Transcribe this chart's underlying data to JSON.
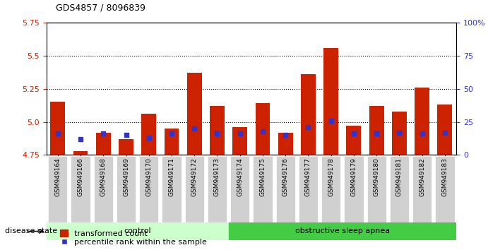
{
  "title": "GDS4857 / 8096839",
  "samples": [
    "GSM949164",
    "GSM949166",
    "GSM949168",
    "GSM949169",
    "GSM949170",
    "GSM949171",
    "GSM949172",
    "GSM949173",
    "GSM949174",
    "GSM949175",
    "GSM949176",
    "GSM949177",
    "GSM949178",
    "GSM949179",
    "GSM949180",
    "GSM949181",
    "GSM949182",
    "GSM949183"
  ],
  "red_values": [
    5.15,
    4.78,
    4.92,
    4.87,
    5.06,
    4.95,
    5.37,
    5.12,
    4.96,
    5.14,
    4.92,
    5.36,
    5.56,
    4.97,
    5.12,
    5.08,
    5.26,
    5.13
  ],
  "blue_values": [
    4.91,
    4.87,
    4.91,
    4.9,
    4.88,
    4.91,
    4.95,
    4.91,
    4.91,
    4.93,
    4.9,
    4.96,
    5.01,
    4.91,
    4.91,
    4.92,
    4.91,
    4.92
  ],
  "control_count": 8,
  "y_min": 4.75,
  "y_max": 5.75,
  "y_ticks": [
    4.75,
    5.0,
    5.25,
    5.5,
    5.75
  ],
  "y_right_ticks": [
    0,
    25,
    50,
    75,
    100
  ],
  "bar_color": "#cc2200",
  "blue_color": "#3333cc",
  "control_bg": "#ccffcc",
  "apnea_bg": "#44cc44",
  "legend_label_red": "transformed count",
  "legend_label_blue": "percentile rank within the sample",
  "disease_state_label": "disease state",
  "control_label": "control",
  "apnea_label": "obstructive sleep apnea",
  "bar_width": 0.65,
  "blue_marker_size": 5,
  "xlabel_bg": "#d0d0d0"
}
